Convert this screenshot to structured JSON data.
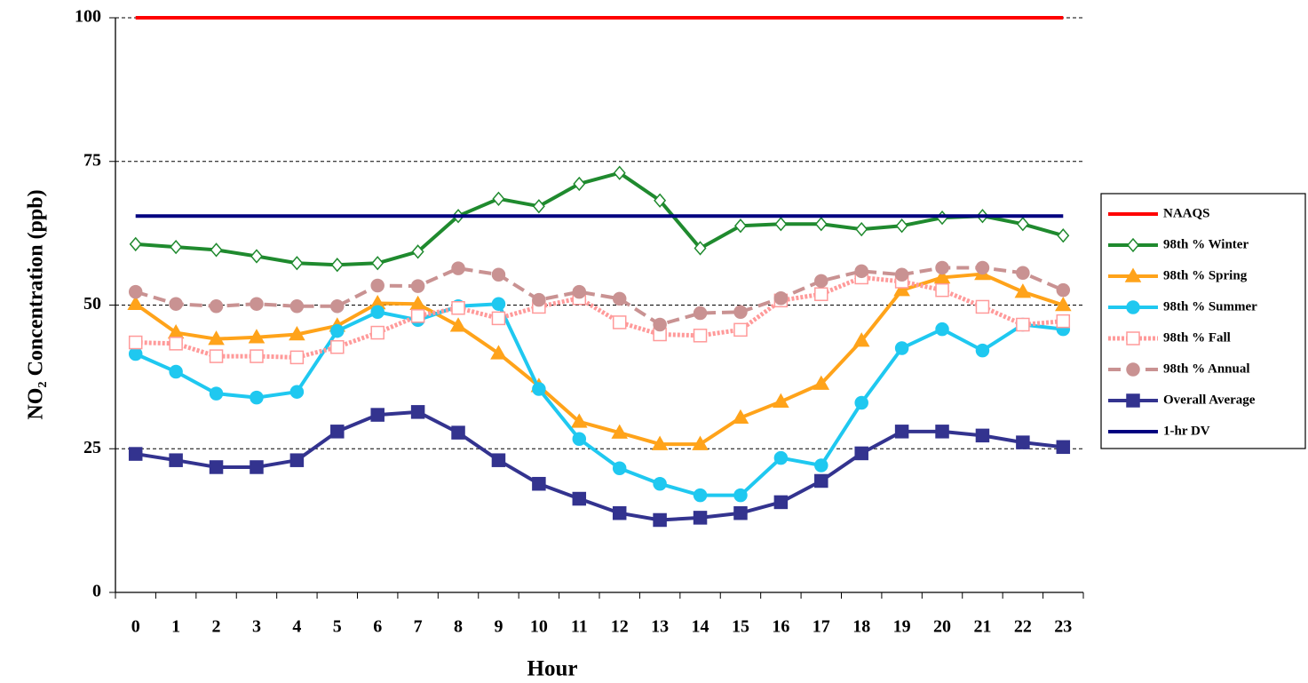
{
  "chart_data": {
    "type": "line",
    "x_label": "Hour",
    "y_label": "NO₂ Concentration  (ppb)",
    "categories": [
      "0",
      "1",
      "2",
      "3",
      "4",
      "5",
      "6",
      "7",
      "8",
      "9",
      "10",
      "11",
      "12",
      "13",
      "14",
      "15",
      "16",
      "17",
      "18",
      "19",
      "20",
      "21",
      "22",
      "23"
    ],
    "ylim": [
      0,
      100
    ],
    "yticks": [
      0,
      25,
      50,
      75,
      100
    ],
    "grid": true,
    "legend": "right",
    "series": [
      {
        "name": "NAAQS",
        "color": "#ff0000",
        "marker": "none",
        "dash": "solid",
        "values": [
          100,
          100,
          100,
          100,
          100,
          100,
          100,
          100,
          100,
          100,
          100,
          100,
          100,
          100,
          100,
          100,
          100,
          100,
          100,
          100,
          100,
          100,
          100,
          100
        ]
      },
      {
        "name": "98th % Winter",
        "color": "#1f8a2e",
        "marker": "diamond",
        "marker_fill": "#ffffff",
        "dash": "solid",
        "values": [
          60.6,
          60.1,
          59.6,
          58.5,
          57.3,
          57.0,
          57.3,
          59.3,
          65.5,
          68.5,
          67.2,
          71.1,
          73.0,
          68.2,
          59.9,
          63.8,
          64.1,
          64.1,
          63.2,
          63.8,
          65.2,
          65.5,
          64.1,
          62.1
        ]
      },
      {
        "name": "98th % Spring",
        "color": "#ffa31a",
        "marker": "triangle",
        "dash": "solid",
        "values": [
          50.2,
          45.2,
          44.1,
          44.4,
          44.9,
          46.4,
          50.3,
          50.2,
          46.4,
          41.6,
          35.9,
          29.7,
          27.8,
          25.8,
          25.8,
          30.4,
          33.2,
          36.3,
          43.8,
          52.6,
          54.8,
          55.4,
          52.3,
          50.0
        ]
      },
      {
        "name": "98th % Summer",
        "color": "#1fc8f0",
        "marker": "circle",
        "dash": "solid",
        "values": [
          41.5,
          38.4,
          34.6,
          33.9,
          34.9,
          45.5,
          48.8,
          47.4,
          49.8,
          50.2,
          35.4,
          26.7,
          21.6,
          18.9,
          16.9,
          16.9,
          23.4,
          22.1,
          33.0,
          42.5,
          45.8,
          42.1,
          46.6,
          45.8
        ]
      },
      {
        "name": "98th % Fall",
        "color": "#ff9a9a",
        "marker": "square",
        "marker_fill": "#ffffff",
        "dash": "dotted",
        "values": [
          43.5,
          43.3,
          41.1,
          41.1,
          40.9,
          42.7,
          45.2,
          48.1,
          49.5,
          47.7,
          49.7,
          51.2,
          47.0,
          44.9,
          44.7,
          45.7,
          50.8,
          51.9,
          54.8,
          54.1,
          52.6,
          49.7,
          46.6,
          47.2
        ]
      },
      {
        "name": "98th % Annual",
        "color": "#c99292",
        "marker": "circle",
        "dash": "dashed",
        "values": [
          52.3,
          50.2,
          49.8,
          50.2,
          49.8,
          49.8,
          53.4,
          53.3,
          56.4,
          55.3,
          50.9,
          52.3,
          51.1,
          46.6,
          48.6,
          48.8,
          51.2,
          54.2,
          55.9,
          55.3,
          56.5,
          56.5,
          55.6,
          52.6
        ]
      },
      {
        "name": "Overall Average",
        "color": "#33338f",
        "marker": "square",
        "dash": "solid",
        "values": [
          24.1,
          23.0,
          21.8,
          21.8,
          23.0,
          28.0,
          30.9,
          31.4,
          27.8,
          23.0,
          18.9,
          16.3,
          13.8,
          12.6,
          13.0,
          13.8,
          15.7,
          19.4,
          24.2,
          28.0,
          28.0,
          27.3,
          26.1,
          25.3
        ]
      },
      {
        "name": "1-hr DV",
        "color": "#000080",
        "marker": "none",
        "dash": "solid",
        "values": [
          65.5,
          65.5,
          65.5,
          65.5,
          65.5,
          65.5,
          65.5,
          65.5,
          65.5,
          65.5,
          65.5,
          65.5,
          65.5,
          65.5,
          65.5,
          65.5,
          65.5,
          65.5,
          65.5,
          65.5,
          65.5,
          65.5,
          65.5,
          65.5
        ]
      }
    ]
  }
}
